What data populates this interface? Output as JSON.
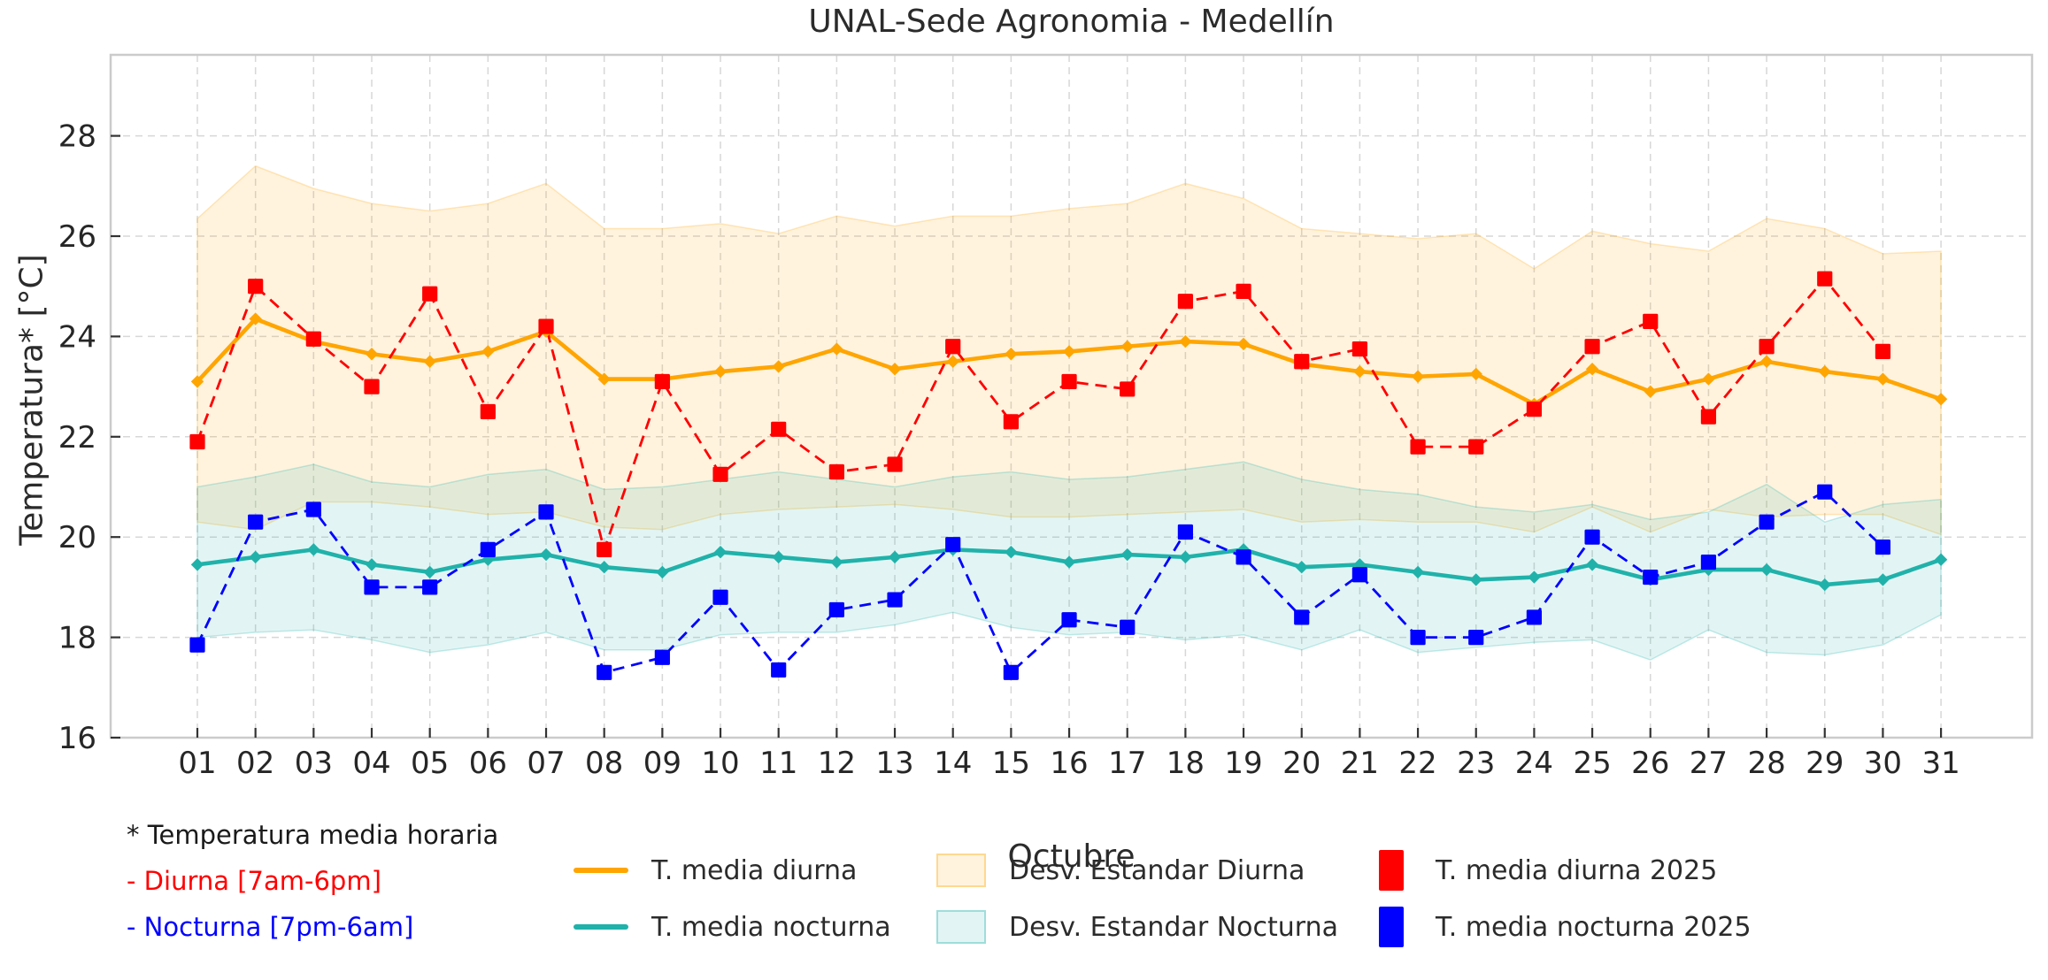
{
  "title": "UNAL-Sede Agronomia - Medellín",
  "annotation": {
    "line1": "* Temperatura media horaria",
    "line1_color": "#1a1a1a",
    "line2": "- Diurna [7am-6pm]",
    "line2_color": "#ff0000",
    "line3": "- Nocturna [7pm-6am]",
    "line3_color": "#0000ff"
  },
  "legend": {
    "items": [
      {
        "label": "T. media diurna",
        "swatch": "line",
        "color": "#ffa500"
      },
      {
        "label": "T. media nocturna",
        "swatch": "line",
        "color": "#20b2aa"
      },
      {
        "label": "Desv. Estandar Diurna",
        "swatch": "patch",
        "fill": "rgba(255,165,0,0.13)",
        "border": "rgba(255,165,0,0.35)"
      },
      {
        "label": "Desv. Estandar Nocturna",
        "swatch": "patch",
        "fill": "rgba(32,178,170,0.13)",
        "border": "rgba(32,178,170,0.35)"
      },
      {
        "label": "T. media diurna 2025",
        "swatch": "square",
        "color": "#ff0000"
      },
      {
        "label": "T. media nocturna 2025",
        "swatch": "square",
        "color": "#0000ff"
      }
    ]
  },
  "chart_data": {
    "type": "line",
    "title": "UNAL-Sede Agronomia - Medellín",
    "xlabel": "Octubre",
    "ylabel": "Temperatura* [°C]",
    "x_tick_labels": [
      "01",
      "02",
      "03",
      "04",
      "05",
      "06",
      "07",
      "08",
      "09",
      "10",
      "11",
      "12",
      "13",
      "14",
      "15",
      "16",
      "17",
      "18",
      "19",
      "20",
      "21",
      "22",
      "23",
      "24",
      "25",
      "26",
      "27",
      "28",
      "29",
      "30",
      "31"
    ],
    "yticks": [
      16,
      18,
      20,
      22,
      24,
      26,
      28
    ],
    "ylim": [
      16,
      29.6
    ],
    "grid": true,
    "legend_position": "bottom",
    "colors": {
      "grid": "#d7d7d7",
      "spine": "#cbcbcb",
      "tick": "#333333",
      "tick_text": "#262626"
    },
    "series": [
      {
        "name": "T. media diurna",
        "color": "#ffa500",
        "style": "solid",
        "marker": "diamond",
        "width": 4.6,
        "values": [
          23.1,
          24.35,
          23.9,
          23.65,
          23.5,
          23.7,
          24.1,
          23.15,
          23.15,
          23.3,
          23.4,
          23.75,
          23.35,
          23.5,
          23.65,
          23.7,
          23.8,
          23.9,
          23.85,
          23.45,
          23.3,
          23.2,
          23.25,
          22.65,
          23.35,
          22.9,
          23.15,
          23.5,
          23.3,
          23.15,
          22.75
        ]
      },
      {
        "name": "T. media nocturna",
        "color": "#20b2aa",
        "style": "solid",
        "marker": "diamond",
        "width": 4.6,
        "values": [
          19.45,
          19.6,
          19.75,
          19.45,
          19.3,
          19.55,
          19.65,
          19.4,
          19.3,
          19.7,
          19.6,
          19.5,
          19.6,
          19.75,
          19.7,
          19.5,
          19.65,
          19.6,
          19.75,
          19.4,
          19.45,
          19.3,
          19.15,
          19.2,
          19.45,
          19.15,
          19.35,
          19.35,
          19.05,
          19.15,
          19.55
        ]
      },
      {
        "name": "T. media nocturna 2025",
        "color": "#0000ff",
        "style": "dashed",
        "marker": "square",
        "width": 2.8,
        "values": [
          17.85,
          20.3,
          20.55,
          19.0,
          19.0,
          19.75,
          20.5,
          17.3,
          17.6,
          18.8,
          17.35,
          18.55,
          18.75,
          19.85,
          17.3,
          18.35,
          18.2,
          20.1,
          19.6,
          18.4,
          19.25,
          18.0,
          18.0,
          18.4,
          20.0,
          19.2,
          19.5,
          20.3,
          20.9,
          19.8
        ]
      },
      {
        "name": "T. media diurna 2025",
        "color": "#ff0000",
        "style": "dashed",
        "marker": "square",
        "width": 2.8,
        "values": [
          21.9,
          25.0,
          23.95,
          23.0,
          24.85,
          22.5,
          24.2,
          19.75,
          23.1,
          21.25,
          22.15,
          21.3,
          21.45,
          23.8,
          22.3,
          23.1,
          22.95,
          24.7,
          24.9,
          23.5,
          23.75,
          21.8,
          21.8,
          22.55,
          23.8,
          24.3,
          22.4,
          23.8,
          25.15,
          23.7
        ]
      }
    ],
    "bands": [
      {
        "name": "Desv. Estandar Diurna",
        "color": "#ffa500",
        "upper": [
          26.35,
          27.4,
          26.95,
          26.65,
          26.5,
          26.65,
          27.05,
          26.15,
          26.15,
          26.25,
          26.05,
          26.4,
          26.2,
          26.4,
          26.4,
          26.55,
          26.65,
          27.05,
          26.75,
          26.15,
          26.05,
          25.95,
          26.05,
          25.35,
          26.1,
          25.85,
          25.7,
          26.35,
          26.15,
          25.65,
          25.7
        ],
        "lower": [
          20.3,
          20.15,
          20.7,
          20.7,
          20.6,
          20.45,
          20.5,
          20.2,
          20.15,
          20.45,
          20.55,
          20.6,
          20.65,
          20.55,
          20.4,
          20.4,
          20.45,
          20.5,
          20.55,
          20.3,
          20.35,
          20.3,
          20.3,
          20.1,
          20.6,
          20.1,
          20.55,
          20.4,
          20.45,
          20.45,
          20.05
        ]
      },
      {
        "name": "Desv. Estandar Nocturna",
        "color": "#20b2aa",
        "upper": [
          21.0,
          21.2,
          21.45,
          21.1,
          21.0,
          21.25,
          21.35,
          20.95,
          21.0,
          21.15,
          21.3,
          21.15,
          21.0,
          21.2,
          21.3,
          21.15,
          21.2,
          21.35,
          21.5,
          21.15,
          20.95,
          20.85,
          20.6,
          20.5,
          20.65,
          20.35,
          20.5,
          21.05,
          20.3,
          20.65,
          20.75
        ],
        "lower": [
          18.0,
          18.1,
          18.15,
          17.95,
          17.7,
          17.85,
          18.1,
          17.75,
          17.75,
          18.05,
          18.1,
          18.1,
          18.25,
          18.5,
          18.2,
          18.05,
          18.1,
          17.95,
          18.05,
          17.75,
          18.15,
          17.7,
          17.8,
          17.9,
          17.95,
          17.55,
          18.15,
          17.7,
          17.65,
          17.85,
          18.45
        ]
      }
    ]
  }
}
